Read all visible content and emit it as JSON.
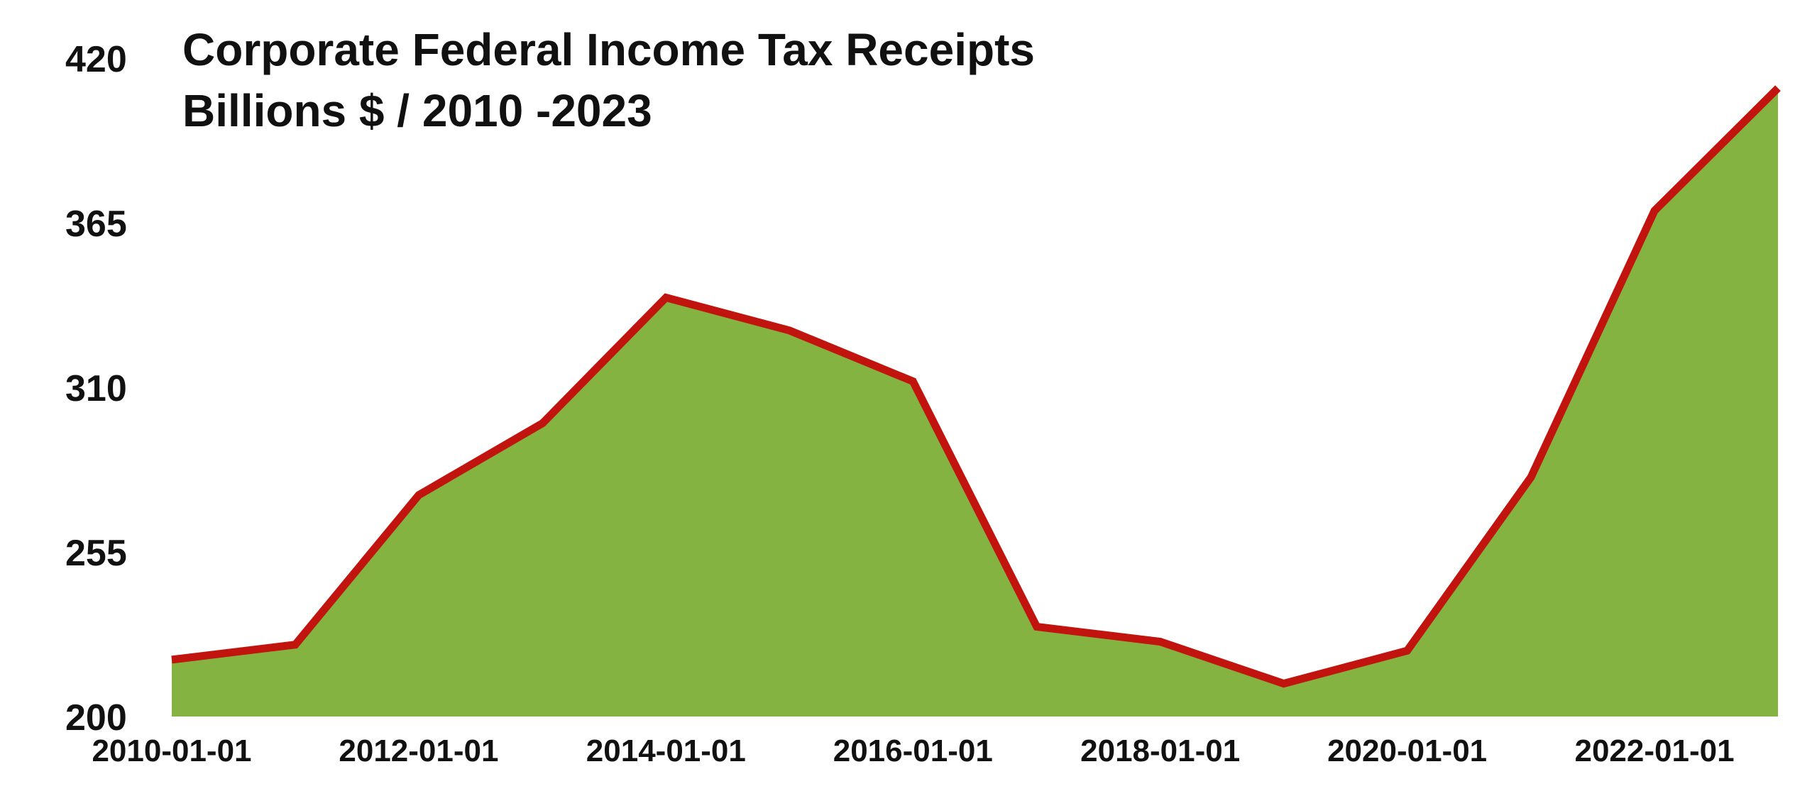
{
  "chart_data": {
    "type": "area",
    "title": "Corporate Federal Income Tax Receipts",
    "subtitle": "Billions $ / 2010 -2023",
    "xlabel": "",
    "ylabel": "",
    "x": [
      "2010-01-01",
      "2011-01-01",
      "2012-01-01",
      "2013-01-01",
      "2014-01-01",
      "2015-01-01",
      "2016-01-01",
      "2017-01-01",
      "2018-01-01",
      "2019-01-01",
      "2020-01-01",
      "2021-01-01",
      "2022-01-01",
      "2023-01-01"
    ],
    "series": [
      {
        "values": [
          219,
          224,
          274,
          298,
          340,
          329,
          312,
          230,
          225,
          211,
          222,
          280,
          369,
          410
        ]
      }
    ],
    "x_tick_labels": [
      "2010-01-01",
      "2012-01-01",
      "2014-01-01",
      "2016-01-01",
      "2018-01-01",
      "2020-01-01",
      "2022-01-01"
    ],
    "y_ticks": [
      200,
      255,
      310,
      365,
      420
    ],
    "ylim": [
      200,
      420
    ],
    "grid": false,
    "legend": "none",
    "colors": {
      "fill": "#84b341",
      "line": "#c2140e",
      "text": "#111111"
    }
  }
}
